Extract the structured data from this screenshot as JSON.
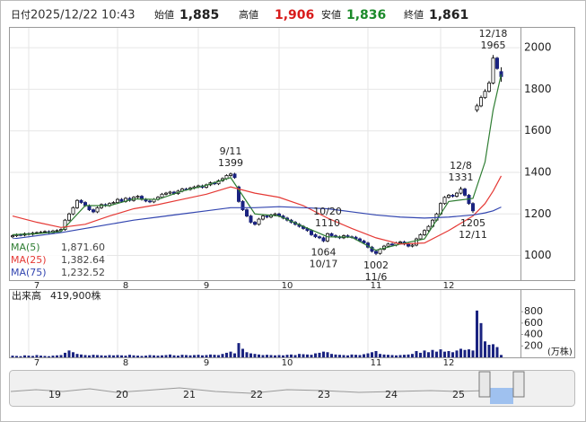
{
  "header": {
    "fields": [
      {
        "label": "日付",
        "value": "2025/12/22 10:43",
        "color": "#333333"
      },
      {
        "label": "始値",
        "value": "1,885",
        "color": "#222222"
      },
      {
        "label": "高値",
        "value": "1,906",
        "color": "#d81b1b"
      },
      {
        "label": "安値",
        "value": "1,836",
        "color": "#1b8a2a"
      },
      {
        "label": "終値",
        "value": "1,861",
        "color": "#222222"
      }
    ]
  },
  "chart_data": [
    {
      "type": "candlestick",
      "up_color": "#ffffff",
      "down_color": "#1a2380",
      "ylim": [
        890,
        2100
      ],
      "yticks": [
        1000,
        1200,
        1400,
        1600,
        1800,
        2000
      ],
      "grid": true,
      "xticks": [
        {
          "value": 4,
          "label": "7"
        },
        {
          "value": 26,
          "label": "8"
        },
        {
          "value": 46,
          "label": "9"
        },
        {
          "value": 66,
          "label": "10"
        },
        {
          "value": 88,
          "label": "11"
        },
        {
          "value": 106,
          "label": "12"
        }
      ],
      "candles": [
        [
          1090,
          1101,
          1084,
          1095
        ],
        [
          1095,
          1106,
          1089,
          1100
        ],
        [
          1100,
          1106,
          1092,
          1098
        ],
        [
          1098,
          1111,
          1092,
          1105
        ],
        [
          1105,
          1111,
          1096,
          1102
        ],
        [
          1102,
          1114,
          1096,
          1108
        ],
        [
          1108,
          1116,
          1102,
          1110
        ],
        [
          1110,
          1118,
          1104,
          1112
        ],
        [
          1112,
          1121,
          1106,
          1115
        ],
        [
          1115,
          1121,
          1104,
          1110
        ],
        [
          1110,
          1124,
          1104,
          1118
        ],
        [
          1118,
          1126,
          1112,
          1120
        ],
        [
          1120,
          1131,
          1114,
          1125
        ],
        [
          1125,
          1176,
          1119,
          1170
        ],
        [
          1170,
          1206,
          1164,
          1200
        ],
        [
          1200,
          1236,
          1194,
          1230
        ],
        [
          1230,
          1271,
          1224,
          1265
        ],
        [
          1265,
          1271,
          1249,
          1255
        ],
        [
          1255,
          1261,
          1234,
          1240
        ],
        [
          1240,
          1246,
          1214,
          1220
        ],
        [
          1220,
          1226,
          1204,
          1210
        ],
        [
          1210,
          1236,
          1204,
          1230
        ],
        [
          1230,
          1251,
          1224,
          1245
        ],
        [
          1245,
          1251,
          1234,
          1240
        ],
        [
          1240,
          1256,
          1234,
          1250
        ],
        [
          1250,
          1261,
          1244,
          1255
        ],
        [
          1255,
          1276,
          1249,
          1270
        ],
        [
          1270,
          1276,
          1254,
          1260
        ],
        [
          1260,
          1281,
          1254,
          1275
        ],
        [
          1275,
          1281,
          1259,
          1265
        ],
        [
          1265,
          1286,
          1259,
          1280
        ],
        [
          1280,
          1291,
          1274,
          1285
        ],
        [
          1285,
          1291,
          1264,
          1270
        ],
        [
          1270,
          1276,
          1256,
          1262
        ],
        [
          1262,
          1268,
          1252,
          1258
        ],
        [
          1258,
          1276,
          1252,
          1270
        ],
        [
          1270,
          1286,
          1264,
          1280
        ],
        [
          1280,
          1301,
          1274,
          1295
        ],
        [
          1295,
          1306,
          1289,
          1300
        ],
        [
          1300,
          1311,
          1294,
          1305
        ],
        [
          1305,
          1311,
          1292,
          1298
        ],
        [
          1298,
          1316,
          1292,
          1310
        ],
        [
          1310,
          1326,
          1304,
          1320
        ],
        [
          1320,
          1326,
          1312,
          1318
        ],
        [
          1318,
          1331,
          1312,
          1325
        ],
        [
          1325,
          1336,
          1319,
          1330
        ],
        [
          1330,
          1341,
          1324,
          1335
        ],
        [
          1335,
          1341,
          1322,
          1328
        ],
        [
          1328,
          1346,
          1322,
          1340
        ],
        [
          1340,
          1356,
          1334,
          1350
        ],
        [
          1350,
          1356,
          1339,
          1345
        ],
        [
          1345,
          1366,
          1339,
          1360
        ],
        [
          1360,
          1376,
          1354,
          1370
        ],
        [
          1370,
          1391,
          1364,
          1385
        ],
        [
          1385,
          1399,
          1379,
          1392
        ],
        [
          1392,
          1398,
          1369,
          1375
        ],
        [
          1330,
          1336,
          1254,
          1260
        ],
        [
          1260,
          1266,
          1214,
          1220
        ],
        [
          1220,
          1226,
          1184,
          1190
        ],
        [
          1190,
          1196,
          1154,
          1160
        ],
        [
          1160,
          1166,
          1144,
          1150
        ],
        [
          1150,
          1181,
          1144,
          1175
        ],
        [
          1175,
          1196,
          1169,
          1190
        ],
        [
          1190,
          1196,
          1179,
          1185
        ],
        [
          1185,
          1201,
          1179,
          1195
        ],
        [
          1195,
          1206,
          1189,
          1200
        ],
        [
          1200,
          1206,
          1184,
          1190
        ],
        [
          1190,
          1196,
          1174,
          1180
        ],
        [
          1180,
          1186,
          1164,
          1170
        ],
        [
          1170,
          1176,
          1154,
          1160
        ],
        [
          1160,
          1166,
          1144,
          1150
        ],
        [
          1150,
          1156,
          1134,
          1140
        ],
        [
          1140,
          1146,
          1124,
          1130
        ],
        [
          1130,
          1136,
          1114,
          1120
        ],
        [
          1120,
          1126,
          1094,
          1100
        ],
        [
          1100,
          1106,
          1084,
          1090
        ],
        [
          1090,
          1096,
          1079,
          1085
        ],
        [
          1085,
          1091,
          1064,
          1070
        ],
        [
          1070,
          1110,
          1064,
          1105
        ],
        [
          1105,
          1110,
          1089,
          1095
        ],
        [
          1095,
          1101,
          1084,
          1090
        ],
        [
          1090,
          1096,
          1079,
          1085
        ],
        [
          1085,
          1101,
          1079,
          1095
        ],
        [
          1095,
          1101,
          1084,
          1090
        ],
        [
          1090,
          1096,
          1082,
          1088
        ],
        [
          1088,
          1094,
          1074,
          1080
        ],
        [
          1080,
          1086,
          1064,
          1070
        ],
        [
          1070,
          1076,
          1054,
          1060
        ],
        [
          1060,
          1066,
          1034,
          1040
        ],
        [
          1040,
          1046,
          1014,
          1020
        ],
        [
          1020,
          1026,
          1002,
          1010
        ],
        [
          1010,
          1036,
          1004,
          1030
        ],
        [
          1030,
          1051,
          1024,
          1045
        ],
        [
          1045,
          1061,
          1039,
          1055
        ],
        [
          1055,
          1061,
          1044,
          1050
        ],
        [
          1050,
          1066,
          1044,
          1060
        ],
        [
          1060,
          1071,
          1054,
          1065
        ],
        [
          1065,
          1071,
          1049,
          1055
        ],
        [
          1055,
          1061,
          1039,
          1045
        ],
        [
          1045,
          1056,
          1039,
          1050
        ],
        [
          1050,
          1086,
          1044,
          1080
        ],
        [
          1080,
          1106,
          1074,
          1100
        ],
        [
          1100,
          1126,
          1094,
          1120
        ],
        [
          1120,
          1146,
          1114,
          1140
        ],
        [
          1140,
          1176,
          1134,
          1170
        ],
        [
          1170,
          1206,
          1164,
          1200
        ],
        [
          1200,
          1256,
          1194,
          1250
        ],
        [
          1250,
          1286,
          1244,
          1280
        ],
        [
          1280,
          1296,
          1274,
          1290
        ],
        [
          1290,
          1296,
          1279,
          1285
        ],
        [
          1285,
          1306,
          1279,
          1300
        ],
        [
          1300,
          1331,
          1294,
          1320
        ],
        [
          1320,
          1326,
          1284,
          1290
        ],
        [
          1290,
          1296,
          1244,
          1250
        ],
        [
          1250,
          1256,
          1205,
          1215
        ],
        [
          1700,
          1730,
          1690,
          1720
        ],
        [
          1720,
          1770,
          1714,
          1760
        ],
        [
          1760,
          1800,
          1754,
          1790
        ],
        [
          1790,
          1840,
          1784,
          1830
        ],
        [
          1830,
          1965,
          1824,
          1950
        ],
        [
          1950,
          1956,
          1894,
          1900
        ],
        [
          1885,
          1906,
          1836,
          1861
        ]
      ],
      "ma_x": [
        0,
        6,
        12,
        18,
        24,
        30,
        36,
        42,
        48,
        54,
        60,
        66,
        72,
        78,
        84,
        90,
        96,
        102,
        108,
        114,
        117,
        119,
        121
      ],
      "series": [
        {
          "name": "MA(5)",
          "legend_value": "1,871.60",
          "color": "#2e7d32",
          "values": [
            1100,
            1105,
            1115,
            1240,
            1240,
            1272,
            1270,
            1310,
            1338,
            1375,
            1200,
            1190,
            1140,
            1090,
            1088,
            1025,
            1055,
            1080,
            1260,
            1275,
            1450,
            1700,
            1872
          ]
        },
        {
          "name": "MA(25)",
          "legend_value": "1,382.64",
          "color": "#e53935",
          "values": [
            1190,
            1160,
            1135,
            1150,
            1190,
            1225,
            1245,
            1270,
            1295,
            1330,
            1300,
            1280,
            1240,
            1180,
            1130,
            1085,
            1055,
            1060,
            1120,
            1190,
            1250,
            1310,
            1383
          ]
        },
        {
          "name": "MA(75)",
          "legend_value": "1,232.52",
          "color": "#3346b0",
          "values": [
            1080,
            1095,
            1110,
            1130,
            1150,
            1170,
            1185,
            1200,
            1215,
            1230,
            1230,
            1235,
            1230,
            1225,
            1210,
            1195,
            1185,
            1180,
            1185,
            1195,
            1205,
            1215,
            1233
          ]
        }
      ],
      "annotations": [
        {
          "date": "12/18",
          "value": 1965,
          "candle": 119,
          "position": "above"
        },
        {
          "date": "12/8",
          "value": 1331,
          "candle": 111,
          "position": "above"
        },
        {
          "date": "12/11",
          "value": 1205,
          "candle": 114,
          "position": "below"
        },
        {
          "date": "9/11",
          "value": 1399,
          "candle": 54,
          "position": "above"
        },
        {
          "date": "10/20",
          "value": 1110,
          "candle": 78,
          "position": "above"
        },
        {
          "date": "10/17",
          "value": 1064,
          "candle": 77,
          "position": "below"
        },
        {
          "date": "11/6",
          "value": 1002,
          "candle": 90,
          "position": "below"
        }
      ]
    },
    {
      "type": "bar",
      "title": "出来高",
      "last_label": "419,900株",
      "unit": "(万株)",
      "color": "#1a2380",
      "ylim": [
        0,
        1180
      ],
      "yticks": [
        200,
        400,
        600,
        800
      ],
      "values": [
        30,
        25,
        20,
        35,
        30,
        25,
        40,
        30,
        25,
        20,
        30,
        35,
        40,
        80,
        120,
        90,
        60,
        50,
        40,
        35,
        45,
        40,
        35,
        30,
        40,
        35,
        40,
        35,
        30,
        45,
        35,
        30,
        25,
        30,
        40,
        35,
        30,
        35,
        40,
        50,
        35,
        30,
        45,
        40,
        35,
        40,
        45,
        35,
        40,
        50,
        45,
        40,
        60,
        80,
        100,
        70,
        250,
        150,
        90,
        70,
        60,
        50,
        40,
        45,
        40,
        35,
        40,
        35,
        45,
        50,
        40,
        60,
        55,
        50,
        45,
        70,
        80,
        100,
        90,
        60,
        50,
        45,
        40,
        35,
        50,
        45,
        40,
        55,
        70,
        90,
        110,
        60,
        50,
        45,
        40,
        35,
        40,
        45,
        50,
        60,
        110,
        80,
        120,
        90,
        130,
        100,
        140,
        100,
        110,
        90,
        120,
        150,
        130,
        140,
        120,
        820,
        600,
        280,
        220,
        230,
        180,
        42
      ]
    }
  ],
  "navigator": {
    "labels": [
      "19",
      "20",
      "21",
      "22",
      "23",
      "24",
      "25"
    ]
  }
}
